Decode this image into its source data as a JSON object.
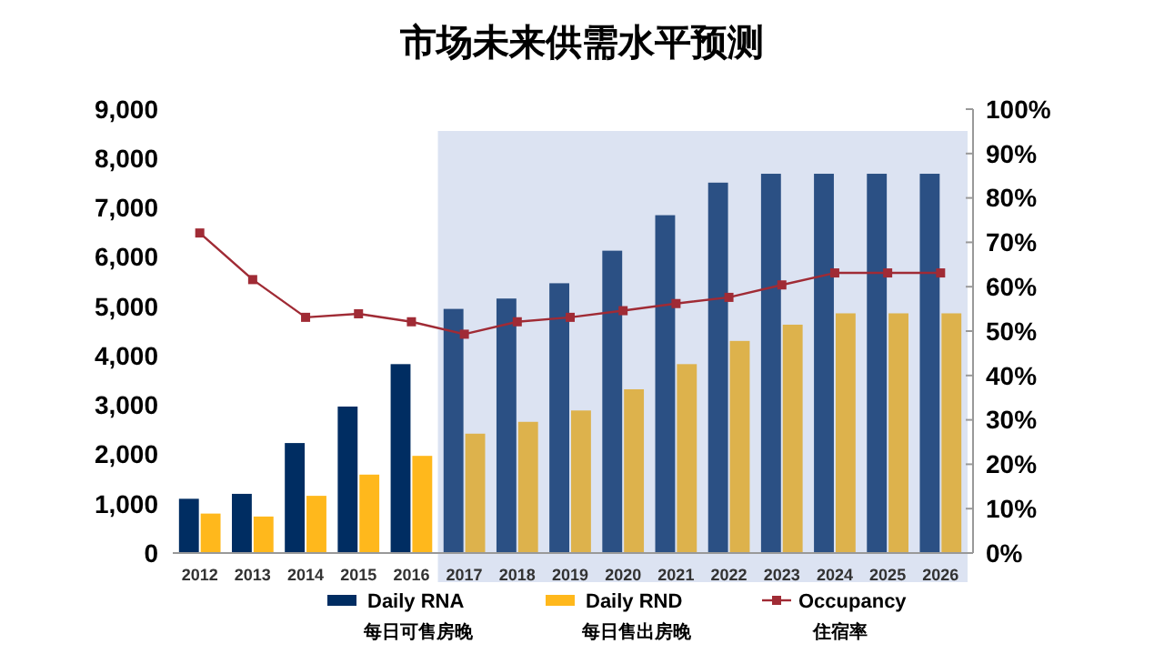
{
  "chart_data": {
    "type": "bar",
    "title": "市场未来供需水平预测",
    "categories": [
      "2012",
      "2013",
      "2014",
      "2015",
      "2016",
      "2017",
      "2018",
      "2019",
      "2020",
      "2021",
      "2022",
      "2023",
      "2024",
      "2025",
      "2026"
    ],
    "series": [
      {
        "name": "Daily RNA\n每日可售房晚",
        "color": "#002d62",
        "colors": [
          "#002d62",
          "#002d62",
          "#002d62",
          "#002d62",
          "#002d62",
          "#2b5084",
          "#2b5084",
          "#2b5084",
          "#2b5084",
          "#2b5084",
          "#2b5084",
          "#2b5084",
          "#2b5084",
          "#2b5084",
          "#2b5084"
        ],
        "values": [
          1100,
          1200,
          2230,
          2970,
          3830,
          4950,
          5160,
          5470,
          6130,
          6850,
          7510,
          7690,
          7690,
          7690,
          7690
        ]
      },
      {
        "name": "Daily RND\n每日售出房晚",
        "color": "#ffb81c",
        "colors": [
          "#ffb81c",
          "#ffb81c",
          "#ffb81c",
          "#ffb81c",
          "#ffb81c",
          "#ddb24c",
          "#ddb24c",
          "#ddb24c",
          "#ddb24c",
          "#ddb24c",
          "#ddb24c",
          "#ddb24c",
          "#ddb24c",
          "#ddb24c",
          "#ddb24c"
        ],
        "values": [
          800,
          740,
          1160,
          1590,
          1970,
          2420,
          2660,
          2890,
          3320,
          3830,
          4300,
          4630,
          4860,
          4860,
          4860
        ]
      },
      {
        "name": "Occupancy\n住宿率",
        "type": "line",
        "axis": "y2",
        "color": "#a02b35",
        "marker": "square",
        "values": [
          72.1,
          61.6,
          53.1,
          53.9,
          52.1,
          49.3,
          52.1,
          53.1,
          54.6,
          56.2,
          57.6,
          60.4,
          63.1,
          63.1,
          63.1
        ]
      }
    ],
    "ylim": [
      0,
      9000
    ],
    "yticks": [
      {
        "value": 0,
        "label": "0"
      },
      {
        "value": 1000,
        "label": "1,000"
      },
      {
        "value": 2000,
        "label": "2,000"
      },
      {
        "value": 3000,
        "label": "3,000"
      },
      {
        "value": 4000,
        "label": "4,000"
      },
      {
        "value": 5000,
        "label": "5,000"
      },
      {
        "value": 6000,
        "label": "6,000"
      },
      {
        "value": 7000,
        "label": "7,000"
      },
      {
        "value": 8000,
        "label": "8,000"
      },
      {
        "value": 9000,
        "label": "9,000"
      }
    ],
    "y2lim": [
      0,
      100
    ],
    "y2ticks": [
      {
        "value": 0,
        "label": "0%"
      },
      {
        "value": 10,
        "label": "10%"
      },
      {
        "value": 20,
        "label": "20%"
      },
      {
        "value": 30,
        "label": "30%"
      },
      {
        "value": 40,
        "label": "40%"
      },
      {
        "value": 50,
        "label": "50%"
      },
      {
        "value": 60,
        "label": "60%"
      },
      {
        "value": 70,
        "label": "70%"
      },
      {
        "value": 80,
        "label": "80%"
      },
      {
        "value": 90,
        "label": "90%"
      },
      {
        "value": 100,
        "label": "100%"
      }
    ],
    "bands": [
      {
        "axis": "x",
        "from": "2017",
        "to": "2026",
        "color": "#dce3f2"
      }
    ],
    "grid": false,
    "legend": "bottom"
  }
}
